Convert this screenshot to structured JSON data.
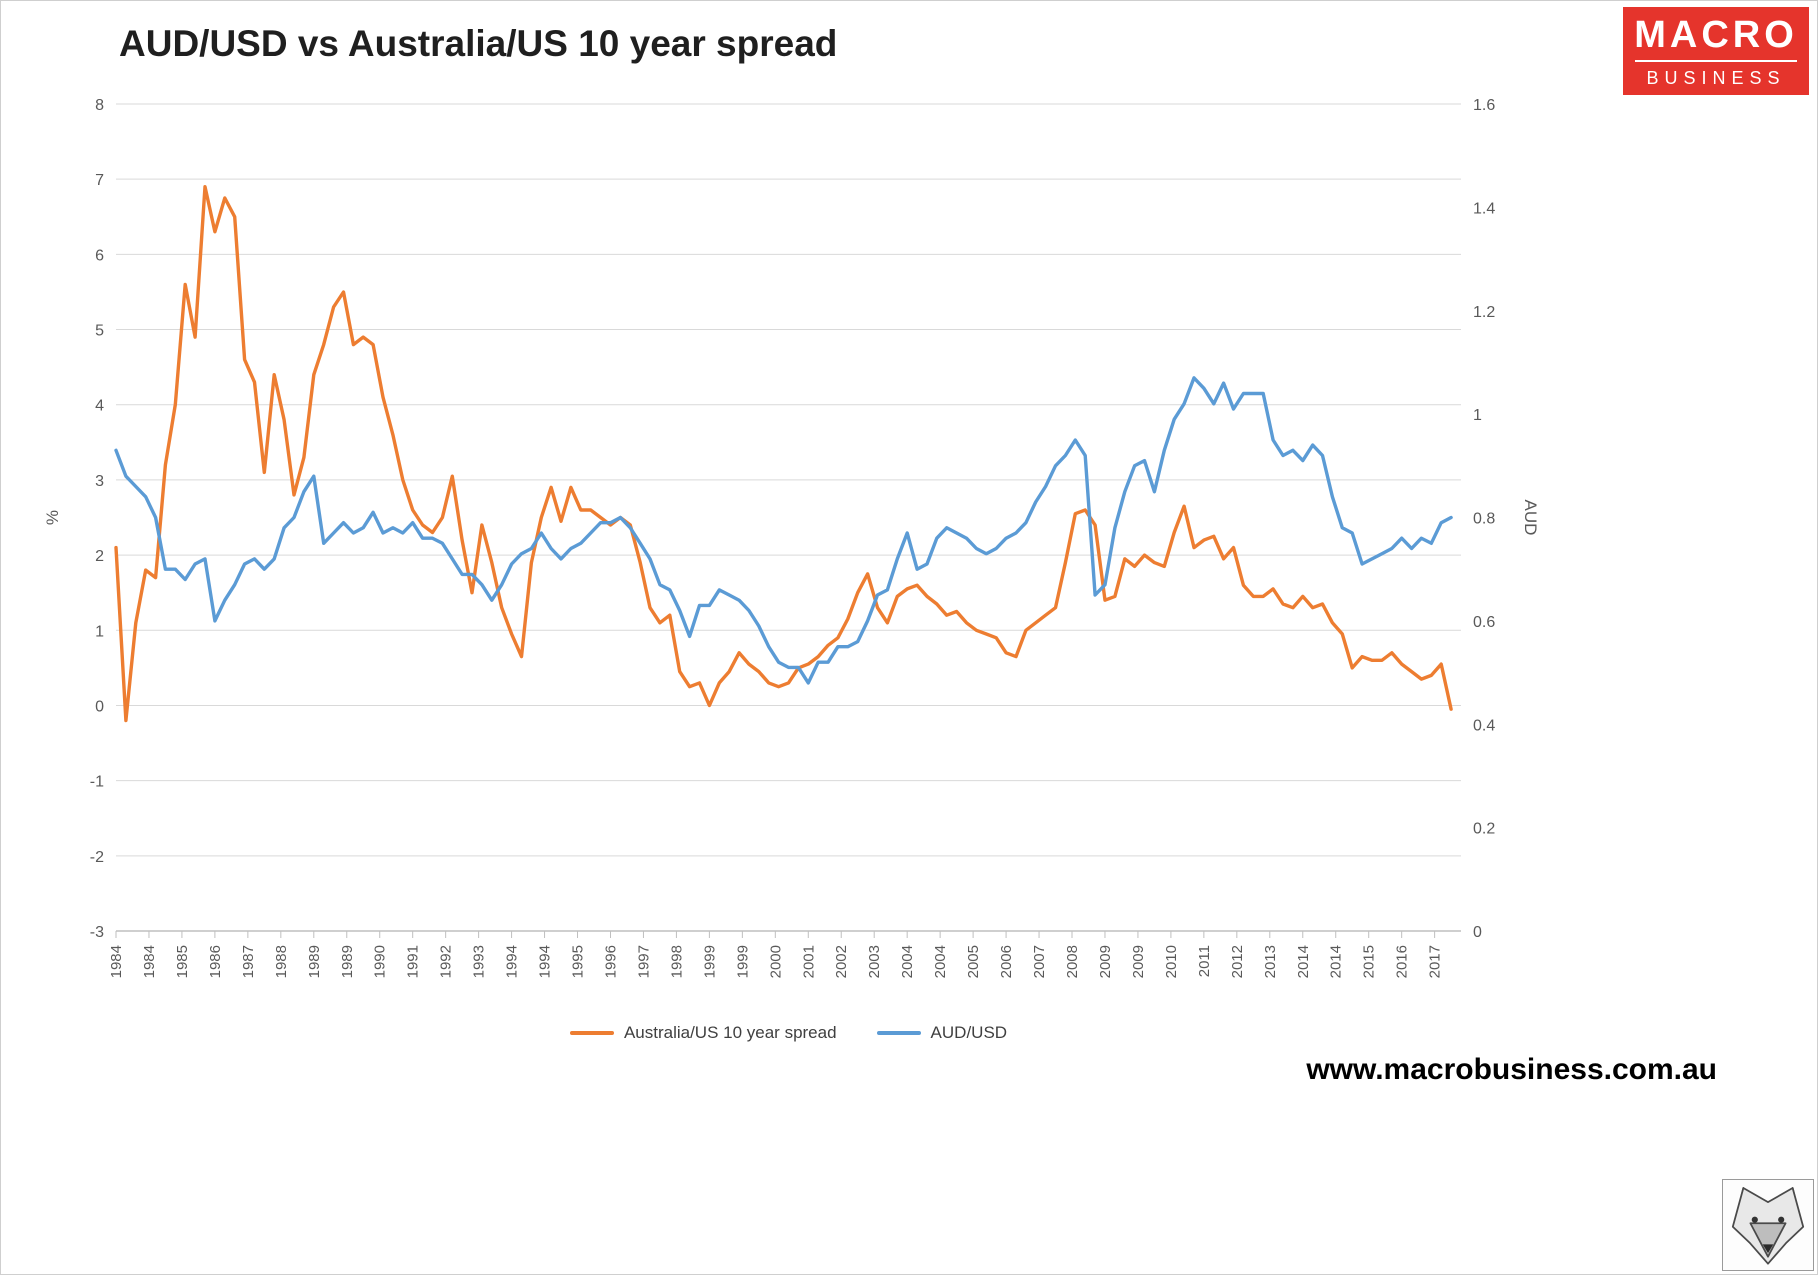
{
  "title": "AUD/USD vs Australia/US 10 year spread",
  "logo": {
    "line1": "MACRO",
    "line2": "BUSINESS",
    "bg_color": "#E5342C",
    "text_color": "#FFFFFF"
  },
  "footer": {
    "url": "www.macrobusiness.com.au"
  },
  "legend": [
    {
      "label": "Australia/US 10 year spread",
      "color": "#ED7D31"
    },
    {
      "label": "AUD/USD",
      "color": "#5B9BD5"
    }
  ],
  "chart_data": {
    "type": "line",
    "title": "AUD/USD vs Australia/US 10 year spread",
    "grid_color": "#D9D9D9",
    "axis_line_color": "#BFBFBF",
    "left_axis": {
      "label": "%",
      "min": -3,
      "max": 8,
      "ticks": [
        8,
        7,
        6,
        5,
        4,
        3,
        2,
        1,
        0,
        -1,
        -2,
        -3
      ]
    },
    "right_axis": {
      "label": "AUD",
      "min": 0,
      "max": 1.6,
      "ticks": [
        "1.6",
        "1.4",
        "1.2",
        "1",
        "0.8",
        "0.6",
        "0.4",
        "0.2",
        "0"
      ]
    },
    "x_axis": {
      "start_year": 1984,
      "end_year": 2018,
      "tick_step_months": 10,
      "tick_labels": [
        "1984",
        "1984",
        "1985",
        "1986",
        "1987",
        "1988",
        "1989",
        "1989",
        "1990",
        "1991",
        "1992",
        "1993",
        "1994",
        "1994",
        "1995",
        "1996",
        "1997",
        "1998",
        "1999",
        "1999",
        "2000",
        "2001",
        "2002",
        "2003",
        "2004",
        "2004",
        "2005",
        "2006",
        "2007",
        "2008",
        "2009",
        "2009",
        "2010",
        "2011",
        "2012",
        "2013",
        "2014",
        "2014",
        "2015",
        "2016",
        "2017"
      ]
    },
    "series": [
      {
        "name": "Australia/US 10 year spread",
        "axis": "left",
        "color": "#ED7D31",
        "start_year": 1984,
        "step_years": 0.25,
        "values": [
          2.1,
          -0.2,
          1.1,
          1.8,
          1.7,
          3.2,
          4.0,
          5.6,
          4.9,
          6.9,
          6.3,
          6.75,
          6.5,
          4.6,
          4.3,
          3.1,
          4.4,
          3.8,
          2.8,
          3.3,
          4.4,
          4.8,
          5.3,
          5.5,
          4.8,
          4.9,
          4.8,
          4.1,
          3.6,
          3.0,
          2.6,
          2.4,
          2.3,
          2.5,
          3.05,
          2.2,
          1.5,
          2.4,
          1.9,
          1.3,
          0.95,
          0.65,
          1.9,
          2.5,
          2.9,
          2.45,
          2.9,
          2.6,
          2.6,
          2.5,
          2.4,
          2.5,
          2.4,
          1.9,
          1.3,
          1.1,
          1.2,
          0.45,
          0.25,
          0.3,
          0.0,
          0.3,
          0.45,
          0.7,
          0.55,
          0.45,
          0.3,
          0.25,
          0.3,
          0.5,
          0.55,
          0.65,
          0.8,
          0.9,
          1.15,
          1.5,
          1.75,
          1.3,
          1.1,
          1.45,
          1.55,
          1.6,
          1.45,
          1.35,
          1.2,
          1.25,
          1.1,
          1.0,
          0.95,
          0.9,
          0.7,
          0.65,
          1.0,
          1.1,
          1.2,
          1.3,
          1.9,
          2.55,
          2.6,
          2.4,
          1.4,
          1.45,
          1.95,
          1.85,
          2.0,
          1.9,
          1.85,
          2.3,
          2.65,
          2.1,
          2.2,
          2.25,
          1.95,
          2.1,
          1.6,
          1.45,
          1.45,
          1.55,
          1.35,
          1.3,
          1.45,
          1.3,
          1.35,
          1.1,
          0.95,
          0.5,
          0.65,
          0.6,
          0.6,
          0.7,
          0.55,
          0.45,
          0.35,
          0.4,
          0.55,
          -0.05
        ]
      },
      {
        "name": "AUD/USD",
        "axis": "right",
        "color": "#5B9BD5",
        "start_year": 1984,
        "step_years": 0.25,
        "values": [
          0.93,
          0.88,
          0.86,
          0.84,
          0.8,
          0.7,
          0.7,
          0.68,
          0.71,
          0.72,
          0.6,
          0.64,
          0.67,
          0.71,
          0.72,
          0.7,
          0.72,
          0.78,
          0.8,
          0.85,
          0.88,
          0.75,
          0.77,
          0.79,
          0.77,
          0.78,
          0.81,
          0.77,
          0.78,
          0.77,
          0.79,
          0.76,
          0.76,
          0.75,
          0.72,
          0.69,
          0.69,
          0.67,
          0.64,
          0.67,
          0.71,
          0.73,
          0.74,
          0.77,
          0.74,
          0.72,
          0.74,
          0.75,
          0.77,
          0.79,
          0.79,
          0.8,
          0.78,
          0.75,
          0.72,
          0.67,
          0.66,
          0.62,
          0.57,
          0.63,
          0.63,
          0.66,
          0.65,
          0.64,
          0.62,
          0.59,
          0.55,
          0.52,
          0.51,
          0.51,
          0.48,
          0.52,
          0.52,
          0.55,
          0.55,
          0.56,
          0.6,
          0.65,
          0.66,
          0.72,
          0.77,
          0.7,
          0.71,
          0.76,
          0.78,
          0.77,
          0.76,
          0.74,
          0.73,
          0.74,
          0.76,
          0.77,
          0.79,
          0.83,
          0.86,
          0.9,
          0.92,
          0.95,
          0.92,
          0.65,
          0.67,
          0.78,
          0.85,
          0.9,
          0.91,
          0.85,
          0.93,
          0.99,
          1.02,
          1.07,
          1.05,
          1.02,
          1.06,
          1.01,
          1.04,
          1.04,
          1.04,
          0.95,
          0.92,
          0.93,
          0.91,
          0.94,
          0.92,
          0.84,
          0.78,
          0.77,
          0.71,
          0.72,
          0.73,
          0.74,
          0.76,
          0.74,
          0.76,
          0.75,
          0.79,
          0.8
        ]
      }
    ],
    "legend_position": "bottom-center"
  }
}
